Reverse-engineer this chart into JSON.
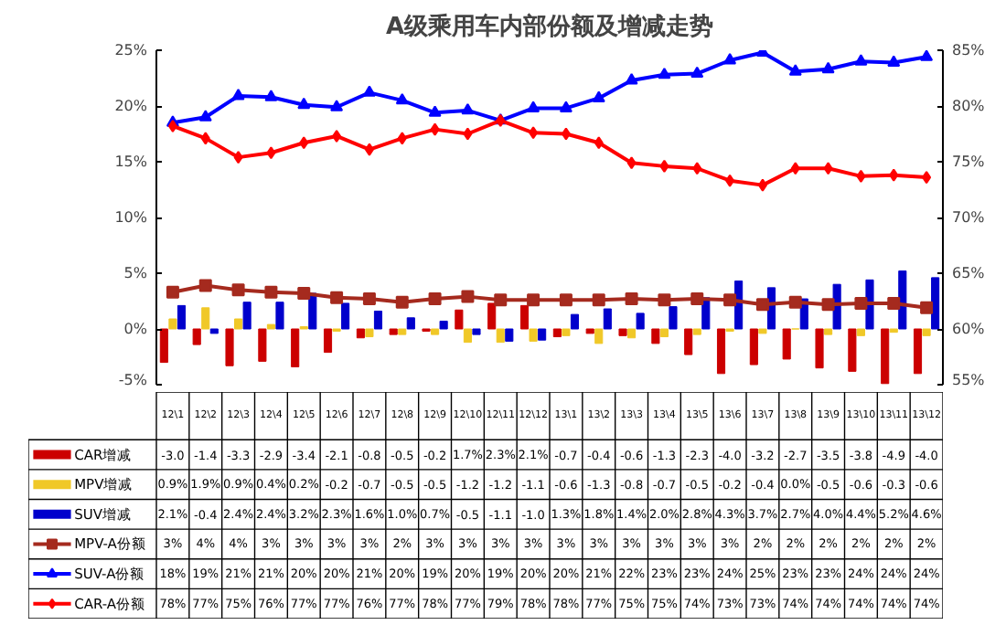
{
  "chart_data": {
    "type": "bar",
    "title": "A级乘用车内部份额及增减走势",
    "categories": [
      "12\\1",
      "12\\2",
      "12\\3",
      "12\\4",
      "12\\5",
      "12\\6",
      "12\\7",
      "12\\8",
      "12\\9",
      "12\\10",
      "12\\11",
      "12\\12",
      "13\\1",
      "13\\2",
      "13\\3",
      "13\\4",
      "13\\5",
      "13\\6",
      "13\\7",
      "13\\8",
      "13\\9",
      "13\\10",
      "13\\11",
      "13\\12"
    ],
    "ylim": [
      -5,
      25
    ],
    "yticks": [
      {
        "value": -5,
        "label": "-5%"
      },
      {
        "value": 0,
        "label": "0%"
      },
      {
        "value": 5,
        "label": "5%"
      },
      {
        "value": 10,
        "label": "10%"
      },
      {
        "value": 15,
        "label": "15%"
      },
      {
        "value": 20,
        "label": "20%"
      },
      {
        "value": 25,
        "label": "25%"
      }
    ],
    "y2lim": [
      55,
      85
    ],
    "y2ticks": [
      {
        "value": 55,
        "label": "55%"
      },
      {
        "value": 60,
        "label": "60%"
      },
      {
        "value": 65,
        "label": "65%"
      },
      {
        "value": 70,
        "label": "70%"
      },
      {
        "value": 75,
        "label": "75%"
      },
      {
        "value": 80,
        "label": "80%"
      },
      {
        "value": 85,
        "label": "85%"
      }
    ],
    "legend": "bottom",
    "series": [
      {
        "name": "CAR增减",
        "color": "#cc0000",
        "values": [
          -3.0,
          -1.4,
          -3.3,
          -2.9,
          -3.4,
          -2.1,
          -0.8,
          -0.5,
          -0.2,
          1.7,
          2.3,
          2.1,
          -0.7,
          -0.4,
          -0.6,
          -1.3,
          -2.3,
          -4.0,
          -3.2,
          -2.7,
          -3.5,
          -3.8,
          -4.9,
          -4.0
        ],
        "value_labels": [
          "-3.0",
          "-1.4",
          "-3.3",
          "-2.9",
          "-3.4",
          "-2.1",
          "-0.8",
          "-0.5",
          "-0.2",
          "1.7%",
          "2.3%",
          "2.1%",
          "-0.7",
          "-0.4",
          "-0.6",
          "-1.3",
          "-2.3",
          "-4.0",
          "-3.2",
          "-2.7",
          "-3.5",
          "-3.8",
          "-4.9",
          "-4.0"
        ]
      },
      {
        "name": "MPV增减",
        "color": "#f0c828",
        "values": [
          0.9,
          1.9,
          0.9,
          0.4,
          0.2,
          -0.2,
          -0.7,
          -0.5,
          -0.5,
          -1.2,
          -1.2,
          -1.1,
          -0.6,
          -1.3,
          -0.8,
          -0.7,
          -0.5,
          -0.2,
          -0.4,
          0.0,
          -0.5,
          -0.6,
          -0.3,
          -0.6
        ],
        "value_labels": [
          "0.9%",
          "1.9%",
          "0.9%",
          "0.4%",
          "0.2%",
          "-0.2",
          "-0.7",
          "-0.5",
          "-0.5",
          "-1.2",
          "-1.2",
          "-1.1",
          "-0.6",
          "-1.3",
          "-0.8",
          "-0.7",
          "-0.5",
          "-0.2",
          "-0.4",
          "0.0%",
          "-0.5",
          "-0.6",
          "-0.3",
          "-0.6"
        ]
      },
      {
        "name": "SUV增减",
        "color": "#0000cc",
        "values": [
          2.1,
          -0.4,
          2.4,
          2.4,
          3.2,
          2.3,
          1.6,
          1.0,
          0.7,
          -0.5,
          -1.1,
          -1.0,
          1.3,
          1.8,
          1.4,
          2.0,
          2.8,
          4.3,
          3.7,
          2.7,
          4.0,
          4.4,
          5.2,
          4.6
        ],
        "value_labels": [
          "2.1%",
          "-0.4",
          "2.4%",
          "2.4%",
          "3.2%",
          "2.3%",
          "1.6%",
          "1.0%",
          "0.7%",
          "-0.5",
          "-1.1",
          "-1.0",
          "1.3%",
          "1.8%",
          "1.4%",
          "2.0%",
          "2.8%",
          "4.3%",
          "3.7%",
          "2.7%",
          "4.0%",
          "4.4%",
          "5.2%",
          "4.6%"
        ]
      },
      {
        "name": "MPV-A份额",
        "type": "line",
        "marker": "square",
        "color": "#a52a1e",
        "values": [
          3.3,
          3.9,
          3.5,
          3.3,
          3.2,
          2.8,
          2.7,
          2.4,
          2.7,
          2.9,
          2.6,
          2.6,
          2.6,
          2.6,
          2.7,
          2.6,
          2.7,
          2.6,
          2.2,
          2.4,
          2.2,
          2.3,
          2.3,
          1.9
        ],
        "value_labels": [
          "3%",
          "4%",
          "4%",
          "3%",
          "3%",
          "3%",
          "3%",
          "2%",
          "3%",
          "3%",
          "3%",
          "3%",
          "3%",
          "3%",
          "3%",
          "3%",
          "3%",
          "3%",
          "2%",
          "2%",
          "2%",
          "2%",
          "2%",
          "2%"
        ]
      },
      {
        "name": "SUV-A份额",
        "type": "line",
        "marker": "triangle",
        "color": "#0000ff",
        "values": [
          18.5,
          19.0,
          20.9,
          20.8,
          20.1,
          19.9,
          21.2,
          20.5,
          19.4,
          19.6,
          18.7,
          19.8,
          19.8,
          20.7,
          22.3,
          22.8,
          22.9,
          24.1,
          24.8,
          23.1,
          23.3,
          24.0,
          23.9,
          24.4
        ],
        "value_labels": [
          "18%",
          "19%",
          "21%",
          "21%",
          "20%",
          "20%",
          "21%",
          "20%",
          "19%",
          "20%",
          "19%",
          "20%",
          "20%",
          "21%",
          "22%",
          "23%",
          "23%",
          "24%",
          "25%",
          "23%",
          "23%",
          "24%",
          "24%",
          "24%"
        ]
      },
      {
        "name": "CAR-A份额",
        "type": "line",
        "marker": "diamond",
        "axis": "y2",
        "color": "#ff0000",
        "values": [
          78.2,
          77.1,
          75.4,
          75.8,
          76.7,
          77.3,
          76.1,
          77.1,
          77.9,
          77.5,
          78.7,
          77.6,
          77.5,
          76.7,
          74.9,
          74.6,
          74.4,
          73.3,
          72.9,
          74.4,
          74.4,
          73.7,
          73.8,
          73.6
        ],
        "value_labels": [
          "78%",
          "77%",
          "75%",
          "76%",
          "77%",
          "77%",
          "76%",
          "77%",
          "78%",
          "77%",
          "79%",
          "78%",
          "78%",
          "77%",
          "75%",
          "75%",
          "74%",
          "73%",
          "73%",
          "74%",
          "74%",
          "74%",
          "74%",
          "74%"
        ]
      }
    ]
  }
}
